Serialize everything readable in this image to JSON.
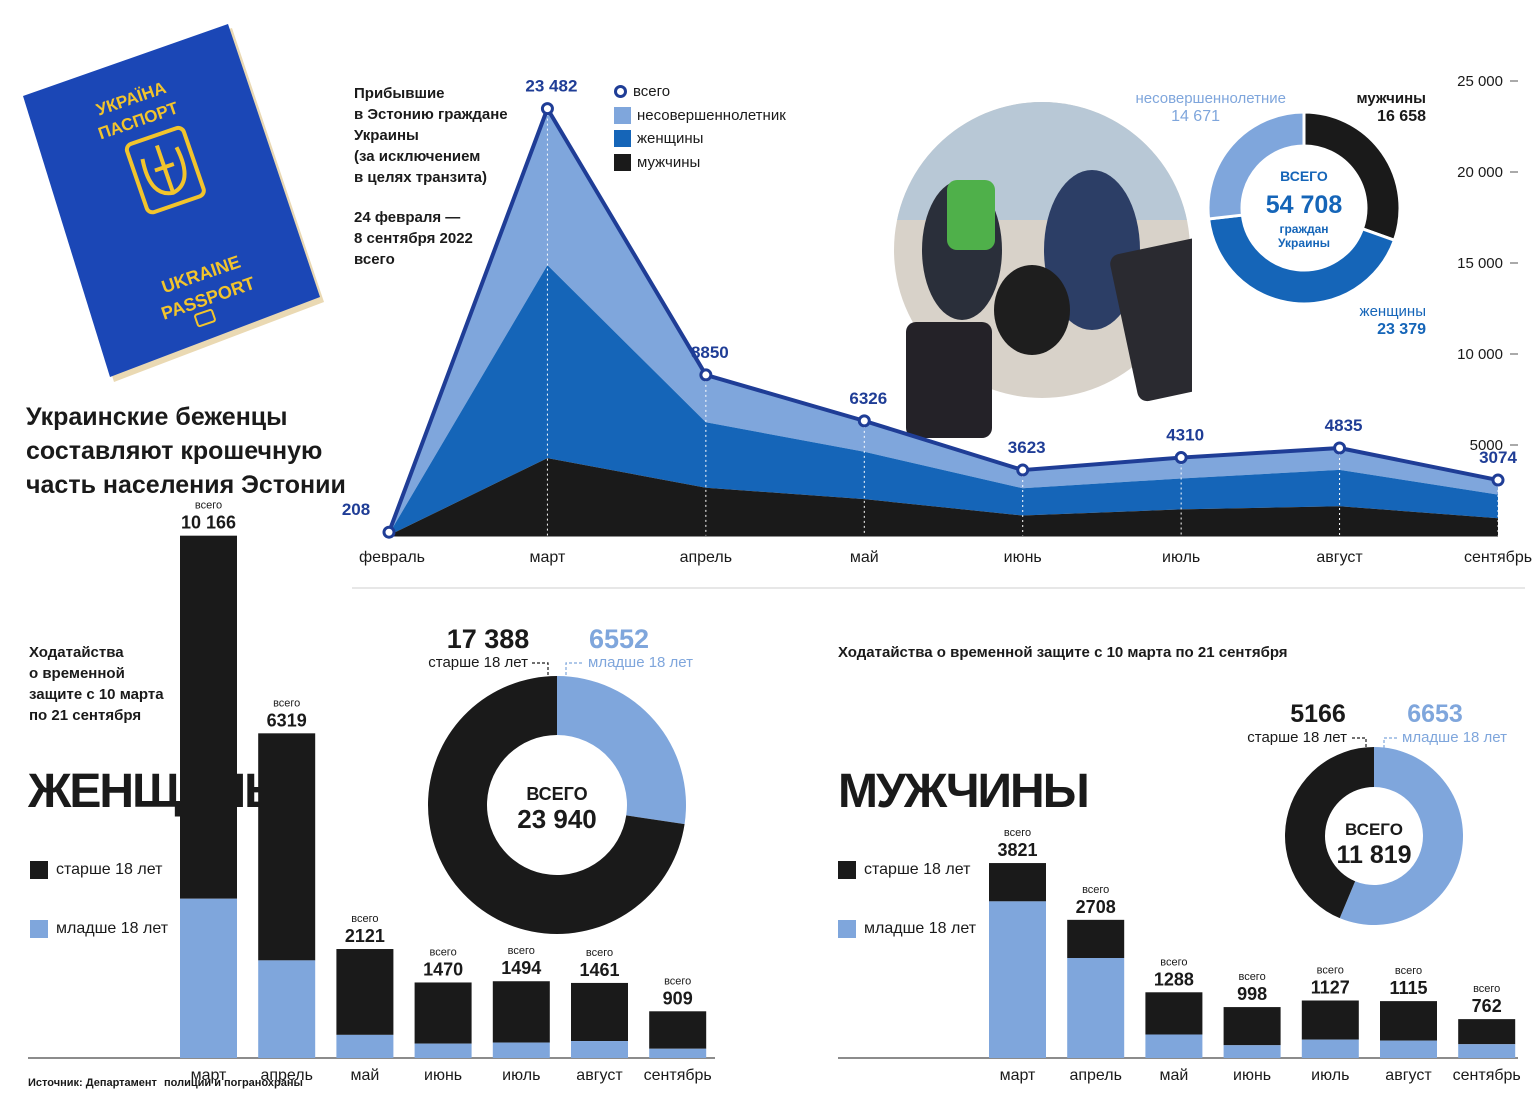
{
  "headline": [
    "Украинские беженцы",
    "составляют крошечную",
    "часть населения Эстонии"
  ],
  "passport": {
    "top1": "УКРАЇНА",
    "top2": "ПАСПОРТ",
    "bottom1": "UKRAINE",
    "bottom2": "PASSPORT"
  },
  "arrivals_note": [
    "Прибывшие",
    "в Эстонию граждане",
    "Украины",
    "(за исключением",
    "в целях транзита)"
  ],
  "period_note": [
    "24 февраля —",
    "8 сентября 2022",
    "всего"
  ],
  "legend_top": {
    "total": "всего",
    "minor": "несовершеннолетник",
    "women": "женщины",
    "men": "мужчины"
  },
  "colors": {
    "total_line": "#1f3d96",
    "minor": "#7fa6dc",
    "women": "#1565b8",
    "men": "#1a1a1a",
    "under18": "#7fa6dc",
    "over18": "#1a1a1a"
  },
  "donut_total": {
    "minors_label": "несовершеннолетние",
    "minors_value": "14 671",
    "men_label": "мужчины",
    "men_value": "16 658",
    "women_label": "женщины",
    "women_value": "23 379",
    "center_top": "ВСЕГО",
    "center_value": "54 708",
    "center_bottom1": "граждан",
    "center_bottom2": "Украины"
  },
  "women_section": {
    "title": "ЖЕНЩИНЫ",
    "note": [
      "Ходатайства",
      "о временной",
      "защите с 10 марта",
      "по 21 сентября"
    ],
    "legend_over": "старше 18 лет",
    "legend_under": "младше 18 лет",
    "donut_over_value": "17 388",
    "donut_over_label": "старше 18 лет",
    "donut_under_value": "6552",
    "donut_under_label": "младше 18 лет",
    "donut_center_top": "ВСЕГО",
    "donut_center_value": "23 940",
    "source": "Источник: Департамент",
    "source2": "полиции и погранохраны"
  },
  "men_section": {
    "title": "МУЖЧИНЫ",
    "note": "Ходатайства о временной защите с 10 марта по 21 сентября",
    "legend_over": "старше 18 лет",
    "legend_under": "младше 18 лет",
    "donut_over_value": "5166",
    "donut_over_label": "старше 18 лет",
    "donut_under_value": "6653",
    "donut_under_label": "младше 18 лет",
    "donut_center_top": "ВСЕГО",
    "donut_center_value": "11 819"
  },
  "chart_data": [
    {
      "type": "area",
      "categories": [
        "февраль",
        "март",
        "апрель",
        "май",
        "июнь",
        "июль",
        "август",
        "сентябрь"
      ],
      "series": [
        {
          "name": "всего",
          "values": [
            208,
            23482,
            8850,
            6326,
            3623,
            4310,
            4835,
            3074
          ],
          "labels": [
            "208",
            "23 482",
            "8850",
            "6326",
            "3623",
            "4310",
            "4835",
            "3074"
          ]
        },
        {
          "name": "несовершеннолетник",
          "values": [
            100,
            8600,
            2600,
            1700,
            1000,
            1150,
            1200,
            800
          ]
        },
        {
          "name": "женщины",
          "values": [
            70,
            10600,
            3600,
            2600,
            1500,
            1700,
            2000,
            1300
          ]
        },
        {
          "name": "мужчины",
          "values": [
            38,
            4282,
            2650,
            2026,
            1123,
            1460,
            1635,
            974
          ]
        }
      ],
      "yticks": [
        5000,
        10000,
        15000,
        20000,
        25000
      ],
      "ytick_labels": [
        "5000",
        "10 000",
        "15 000",
        "20 000",
        "25 000"
      ],
      "ylim": [
        0,
        25000
      ],
      "legend": "top"
    },
    {
      "type": "pie",
      "labels": [
        "несовершеннолетние",
        "мужчины",
        "женщины"
      ],
      "values": [
        14671,
        16658,
        23379
      ],
      "total": 54708
    },
    {
      "type": "bar",
      "title": "ЖЕНЩИНЫ",
      "categories": [
        "март",
        "апрель",
        "май",
        "июнь",
        "июль",
        "август",
        "сентябрь"
      ],
      "totals": [
        10166,
        6319,
        2121,
        1470,
        1494,
        1461,
        909
      ],
      "total_labels": [
        "10 166",
        "6319",
        "2121",
        "1470",
        "1494",
        "1461",
        "909"
      ],
      "total_caption": "всего",
      "series": [
        {
          "name": "младше 18 лет",
          "values": [
            3100,
            1900,
            450,
            280,
            300,
            330,
            180
          ]
        },
        {
          "name": "старше 18 лет",
          "values": [
            7066,
            4419,
            1671,
            1190,
            1194,
            1131,
            729
          ]
        }
      ]
    },
    {
      "type": "pie",
      "labels": [
        "старше 18 лет",
        "младше 18 лет"
      ],
      "values": [
        17388,
        6552
      ],
      "total": 23940
    },
    {
      "type": "bar",
      "title": "МУЖЧИНЫ",
      "categories": [
        "март",
        "апрель",
        "май",
        "июнь",
        "июль",
        "август",
        "сентябрь"
      ],
      "totals": [
        3821,
        2708,
        1288,
        998,
        1127,
        1115,
        762
      ],
      "total_labels": [
        "3821",
        "2708",
        "1288",
        "998",
        "1127",
        "1115",
        "762"
      ],
      "total_caption": "всего",
      "series": [
        {
          "name": "младше 18 лет",
          "values": [
            3070,
            1960,
            460,
            250,
            360,
            340,
            270
          ]
        },
        {
          "name": "старше 18 лет",
          "values": [
            751,
            748,
            828,
            748,
            767,
            775,
            492
          ]
        }
      ]
    },
    {
      "type": "pie",
      "labels": [
        "старше 18 лет",
        "младше 18 лет"
      ],
      "values": [
        5166,
        6653
      ],
      "total": 11819
    }
  ]
}
